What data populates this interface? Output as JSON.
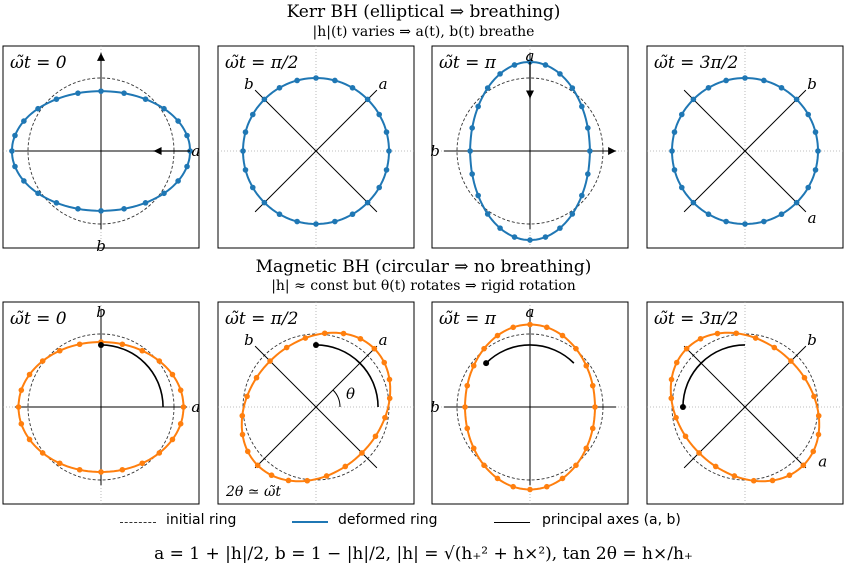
{
  "kerr": {
    "title": "Kerr BH (elliptical ⇒ breathing)",
    "subtitle": "|h|(t) varies ⇒ a(t), b(t) breathe",
    "panels": [
      {
        "label": "ω̃t = 0",
        "a_label": "a",
        "b_label": "b"
      },
      {
        "label": "ω̃t = π/2",
        "a_label": "a",
        "b_label": "b"
      },
      {
        "label": "ω̃t = π",
        "a_label": "a",
        "b_label": "b"
      },
      {
        "label": "ω̃t = 3π/2",
        "a_label": "a",
        "b_label": "b"
      }
    ]
  },
  "magnetic": {
    "title": "Magnetic BH (circular ⇒ no breathing)",
    "subtitle": "|h| ≈ const but θ(t) rotates ⇒ rigid rotation",
    "panels": [
      {
        "label": "ω̃t = 0",
        "a_label": "a",
        "b_label": "b"
      },
      {
        "label": "ω̃t = π/2",
        "a_label": "a",
        "b_label": "b",
        "angle_label": "θ",
        "note": "2θ ≃ ω̃t"
      },
      {
        "label": "ω̃t = π",
        "a_label": "a",
        "b_label": "b"
      },
      {
        "label": "ω̃t = 3π/2",
        "a_label": "a",
        "b_label": "b"
      }
    ]
  },
  "legend": {
    "initial": "initial ring",
    "deformed": "deformed ring",
    "axes": "principal axes (a, b)"
  },
  "formula": "a = 1 + |h|/2,  b = 1 − |h|/2,    |h| = √(h₊² + h×²),    tan 2θ = h×/h₊",
  "colors": {
    "kerr": "#1f77b4",
    "magnetic": "#ff7f0e",
    "initial": "#333333",
    "axes": "#000000",
    "grid": "#aaaaaa"
  }
}
